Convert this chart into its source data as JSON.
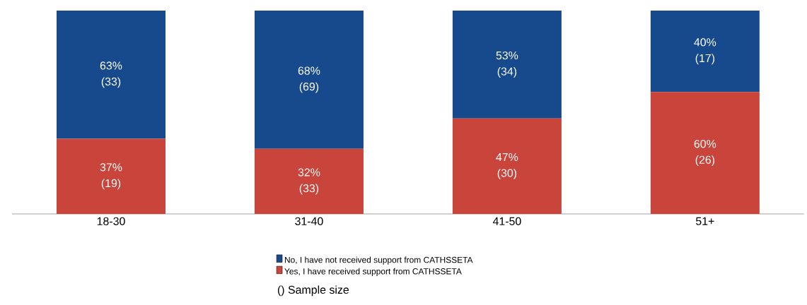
{
  "chart_data": {
    "type": "bar",
    "stacked": true,
    "categories": [
      "18-30",
      "31-40",
      "41-50",
      "51+"
    ],
    "series": [
      {
        "name": "Yes, I have received support from CATHSSETA",
        "color": "#c9443a",
        "values": [
          37,
          32,
          47,
          60
        ],
        "value_labels": [
          "37% (19)",
          "32% (33)",
          "47% (30)",
          "60% (26)"
        ]
      },
      {
        "name": "No, I have not received support from CATHSSETA",
        "color": "#174a8c",
        "values": [
          63,
          68,
          53,
          40
        ],
        "value_labels": [
          "63% (33)",
          "68% (69)",
          "53% (34)",
          "40% (17)"
        ]
      }
    ],
    "ylim": [
      0,
      100
    ],
    "tick_labels": "x",
    "legend": "bottom",
    "annotations": [
      "() Sample size"
    ]
  }
}
